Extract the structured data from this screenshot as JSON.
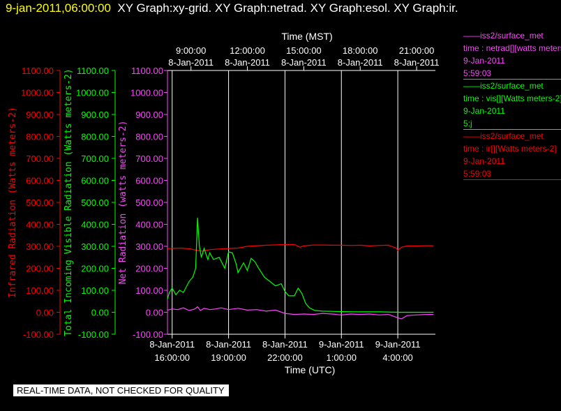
{
  "header": {
    "datetime": "9-jan-2011,06:00:00",
    "titles": "XY Graph:xy-grid.  XY Graph:netrad.  XY Graph:esol.  XY Graph:ir."
  },
  "legends": [
    {
      "color": "#ff44ff",
      "lines": [
        "——iss2/surface_met",
        "time : netrad[][watts meters-2]",
        "9-Jan-2011",
        "5:59:03"
      ]
    },
    {
      "color": "#00ff00",
      "lines": [
        "——iss2/surface_met",
        "time : vis[][Watts meters-2]",
        "9-Jan-2011",
        "5:j"
      ]
    },
    {
      "color": "#ff0000",
      "lines": [
        "——iss2/surface_met",
        "time : ir[][Watts meters-2]",
        "9-Jan-2011",
        "5:59:03"
      ]
    }
  ],
  "footer_note": "REAL-TIME DATA, NOT CHECKED FOR QUALITY",
  "chart_data": {
    "type": "line",
    "top_axis": {
      "label": "Time (MST)",
      "ticks": [
        {
          "t": 17,
          "l1": "9:00:00",
          "l2": "8-Jan-2011"
        },
        {
          "t": 20,
          "l1": "12:00:00",
          "l2": "8-Jan-2011"
        },
        {
          "t": 23,
          "l1": "15:00:00",
          "l2": "8-Jan-2011"
        },
        {
          "t": 26,
          "l1": "18:00:00",
          "l2": "8-Jan-2011"
        },
        {
          "t": 29,
          "l1": "21:00:00",
          "l2": "8-Jan-2011"
        }
      ]
    },
    "bottom_axis": {
      "label": "Time (UTC)",
      "ticks": [
        {
          "t": 16,
          "l1": "8-Jan-2011",
          "l2": "16:00:00"
        },
        {
          "t": 19,
          "l1": "8-Jan-2011",
          "l2": "19:00:00"
        },
        {
          "t": 22,
          "l1": "8-Jan-2011",
          "l2": "22:00:00"
        },
        {
          "t": 25,
          "l1": "9-Jan-2011",
          "l2": "1:00:00"
        },
        {
          "t": 28,
          "l1": "9-Jan-2011",
          "l2": "4:00:00"
        }
      ]
    },
    "xlim": [
      15.75,
      30.0
    ],
    "ylim": [
      -100,
      1100
    ],
    "y_ticks": [
      1100,
      1000,
      900,
      800,
      700,
      600,
      500,
      400,
      300,
      200,
      100,
      0,
      -100
    ],
    "y_tick_labels": [
      "1100.00",
      "1000.00",
      "900.00",
      "800.00",
      "700.00",
      "600.00",
      "500.00",
      "400.00",
      "300.00",
      "200.00",
      "100.00",
      "0.00",
      "-100.00"
    ],
    "y_axes": [
      {
        "label": "Infrared Radiation (Watts meters-2)",
        "color": "#ff0000"
      },
      {
        "label": "Total Incoming Visible Radiation (Watts meters-2)",
        "color": "#00ff00"
      },
      {
        "label": "Net Radiation (watts meters-2)",
        "color": "#ff44ff"
      }
    ],
    "grid": {
      "vertical": true,
      "horizontal": false,
      "color": "#ffffff"
    },
    "series": [
      {
        "name": "ir",
        "color": "#ff0000",
        "x": [
          15.75,
          16.5,
          17.0,
          17.3,
          17.6,
          18.0,
          18.5,
          19.0,
          19.5,
          20.0,
          21.0,
          22.0,
          22.5,
          22.8,
          23.0,
          23.5,
          24.0,
          24.5,
          25.0,
          25.5,
          26.0,
          26.5,
          27.0,
          27.5,
          27.9,
          28.0,
          28.2,
          28.5,
          29.0,
          29.5,
          29.9
        ],
        "y": [
          290,
          292,
          288,
          282,
          278,
          285,
          288,
          290,
          292,
          300,
          305,
          308,
          308,
          296,
          302,
          306,
          306,
          305,
          305,
          304,
          305,
          302,
          304,
          305,
          292,
          282,
          296,
          302,
          302,
          303,
          303
        ]
      },
      {
        "name": "vis",
        "color": "#00ff00",
        "x": [
          15.75,
          15.85,
          16.0,
          16.2,
          16.4,
          16.6,
          16.9,
          17.1,
          17.25,
          17.35,
          17.45,
          17.55,
          17.7,
          17.9,
          18.0,
          18.2,
          18.5,
          18.8,
          19.0,
          19.2,
          19.4,
          19.5,
          19.8,
          20.0,
          20.2,
          20.4,
          20.6,
          20.9,
          21.2,
          21.5,
          21.8,
          22.0,
          22.2,
          22.5,
          22.7,
          22.9,
          23.1,
          23.3,
          23.6,
          24.0,
          24.5,
          25.0,
          26.0,
          27.0,
          28.0,
          29.0,
          29.9
        ],
        "y": [
          60,
          90,
          110,
          80,
          100,
          90,
          140,
          160,
          200,
          430,
          300,
          250,
          290,
          240,
          270,
          240,
          250,
          200,
          275,
          270,
          220,
          180,
          225,
          190,
          245,
          230,
          200,
          160,
          140,
          120,
          130,
          95,
          75,
          75,
          110,
          85,
          40,
          20,
          8,
          5,
          4,
          3,
          2,
          2,
          0,
          0,
          0
        ]
      },
      {
        "name": "netrad",
        "color": "#ff44ff",
        "x": [
          15.75,
          16.0,
          16.3,
          16.6,
          16.9,
          17.2,
          17.35,
          17.5,
          17.7,
          18.0,
          18.3,
          18.6,
          19.0,
          19.5,
          20.0,
          20.5,
          21.0,
          21.5,
          22.0,
          22.5,
          23.0,
          23.5,
          24.0,
          24.5,
          25.0,
          25.5,
          26.0,
          26.5,
          27.0,
          27.5,
          28.0,
          28.2,
          28.5,
          29.0,
          29.5,
          29.9
        ],
        "y": [
          10,
          15,
          12,
          20,
          8,
          15,
          25,
          8,
          18,
          12,
          15,
          20,
          12,
          18,
          10,
          12,
          5,
          10,
          -5,
          -10,
          -8,
          -10,
          -5,
          -8,
          -12,
          -8,
          -10,
          -8,
          -12,
          -10,
          -25,
          -30,
          -15,
          -12,
          -10,
          -10
        ]
      }
    ]
  }
}
